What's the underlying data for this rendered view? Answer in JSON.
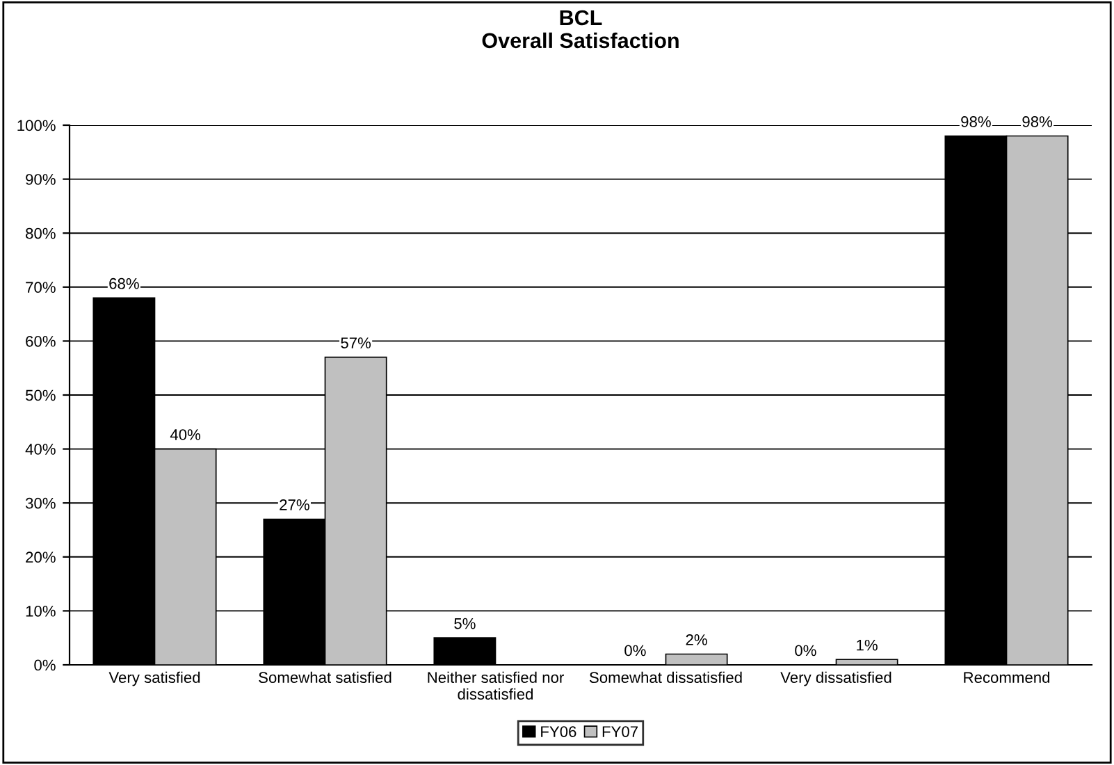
{
  "chart_data": {
    "type": "bar",
    "title": "BCL\nOverall Satisfaction",
    "categories": [
      "Very satisfied",
      "Somewhat satisfied",
      "Neither satisfied nor\ndissatisfied",
      "Somewhat dissatisfied",
      "Very dissatisfied",
      "Recommend"
    ],
    "series": [
      {
        "name": "FY06",
        "color": "#000000",
        "values": [
          68,
          27,
          5,
          0,
          0,
          98
        ],
        "value_labels": [
          "68%",
          "27%",
          "5%",
          "0%",
          "0%",
          "98%"
        ]
      },
      {
        "name": "FY07",
        "color": "#c0c0c0",
        "values": [
          40,
          57,
          null,
          2,
          1,
          98
        ],
        "value_labels": [
          "40%",
          "57%",
          null,
          "2%",
          "1%",
          "98%"
        ]
      }
    ],
    "ylim": [
      0,
      100
    ],
    "yticks": [
      {
        "value": 0,
        "label": "0%"
      },
      {
        "value": 10,
        "label": "10%"
      },
      {
        "value": 20,
        "label": "20%"
      },
      {
        "value": 30,
        "label": "30%"
      },
      {
        "value": 40,
        "label": "40%"
      },
      {
        "value": 50,
        "label": "50%"
      },
      {
        "value": 60,
        "label": "60%"
      },
      {
        "value": 70,
        "label": "70%"
      },
      {
        "value": 80,
        "label": "80%"
      },
      {
        "value": 90,
        "label": "90%"
      },
      {
        "value": 100,
        "label": "100%"
      }
    ],
    "grid": "y",
    "legend": "bottom"
  }
}
